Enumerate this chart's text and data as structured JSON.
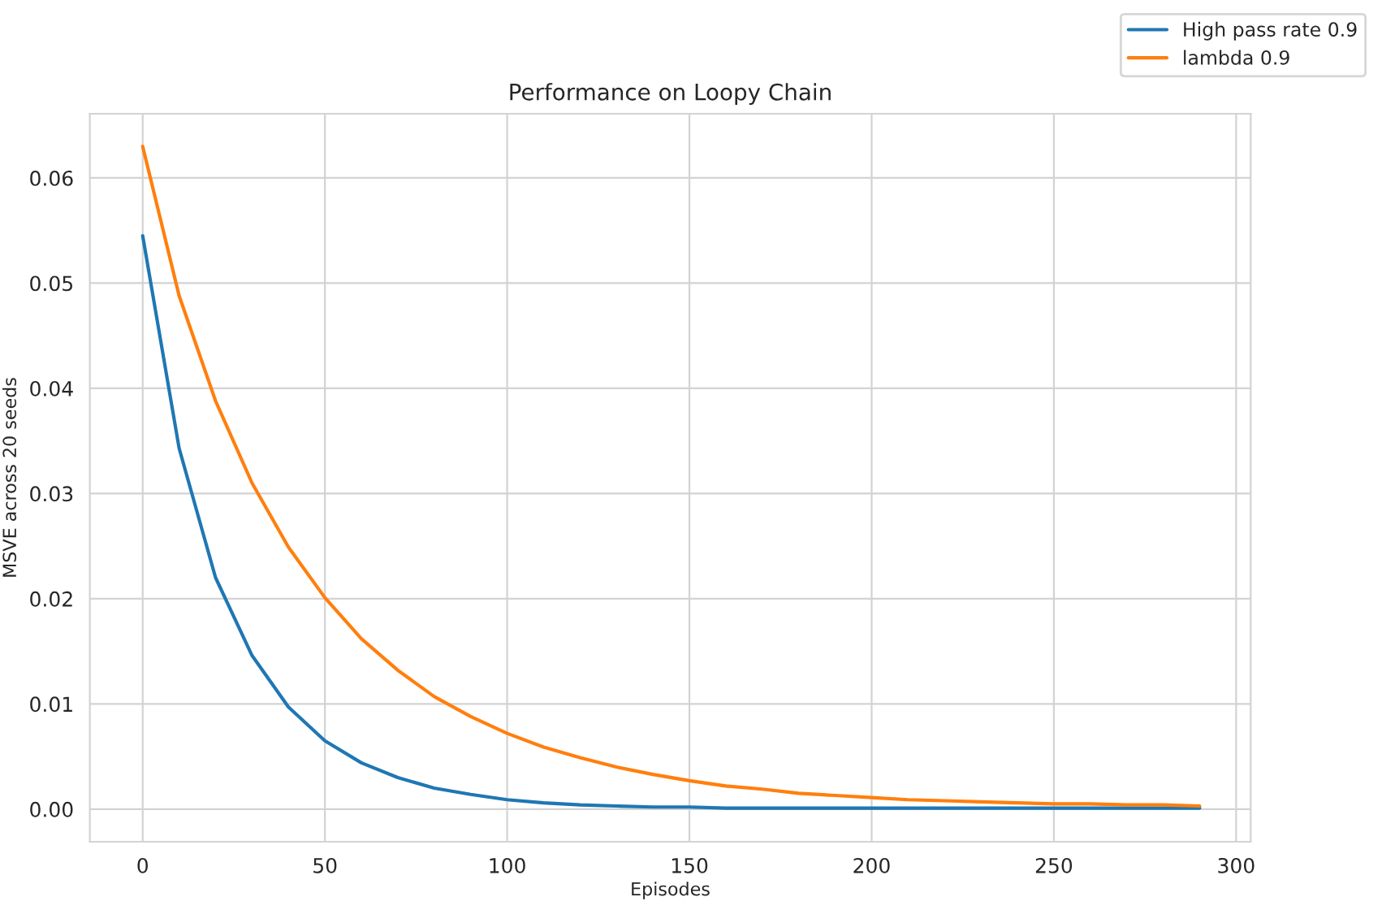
{
  "chart_data": {
    "type": "line",
    "title": "Performance on Loopy Chain",
    "xlabel": "Episodes",
    "ylabel": "MSVE across 20 seeds",
    "x": [
      0,
      10,
      20,
      30,
      40,
      50,
      60,
      70,
      80,
      90,
      100,
      110,
      120,
      130,
      140,
      150,
      160,
      170,
      180,
      190,
      200,
      210,
      220,
      230,
      240,
      250,
      260,
      270,
      280,
      290
    ],
    "series": [
      {
        "name": "High pass rate 0.9",
        "color": "#1f77b4",
        "values": [
          0.0545,
          0.0343,
          0.022,
          0.0146,
          0.0097,
          0.0065,
          0.0044,
          0.003,
          0.002,
          0.0014,
          0.0009,
          0.0006,
          0.0004,
          0.0003,
          0.0002,
          0.0002,
          0.0001,
          0.0001,
          0.0001,
          0.0001,
          0.0001,
          0.0001,
          0.0001,
          0.0001,
          0.0001,
          0.0001,
          0.0001,
          0.0001,
          0.0001,
          0.0001
        ]
      },
      {
        "name": "lambda 0.9",
        "color": "#ff7f0e",
        "values": [
          0.063,
          0.0488,
          0.0388,
          0.031,
          0.0249,
          0.0201,
          0.0162,
          0.0132,
          0.0107,
          0.0088,
          0.0072,
          0.0059,
          0.0049,
          0.004,
          0.0033,
          0.0027,
          0.0022,
          0.0019,
          0.0015,
          0.0013,
          0.0011,
          0.0009,
          0.0008,
          0.0007,
          0.0006,
          0.0005,
          0.0005,
          0.0004,
          0.0004,
          0.0003
        ]
      }
    ],
    "xlim": [
      -14.5,
      304
    ],
    "ylim": [
      -0.0031,
      0.0661
    ],
    "xticks": [
      0,
      50,
      100,
      150,
      200,
      250,
      300
    ],
    "yticks": [
      {
        "value": 0,
        "label": "0.00"
      },
      {
        "value": 0.01,
        "label": "0.01"
      },
      {
        "value": 0.02,
        "label": "0.02"
      },
      {
        "value": 0.03,
        "label": "0.03"
      },
      {
        "value": 0.04,
        "label": "0.04"
      },
      {
        "value": 0.05,
        "label": "0.05"
      },
      {
        "value": 0.06,
        "label": "0.06"
      }
    ],
    "grid": true,
    "legend": "top right",
    "marker": "none",
    "line_style": "solid"
  }
}
